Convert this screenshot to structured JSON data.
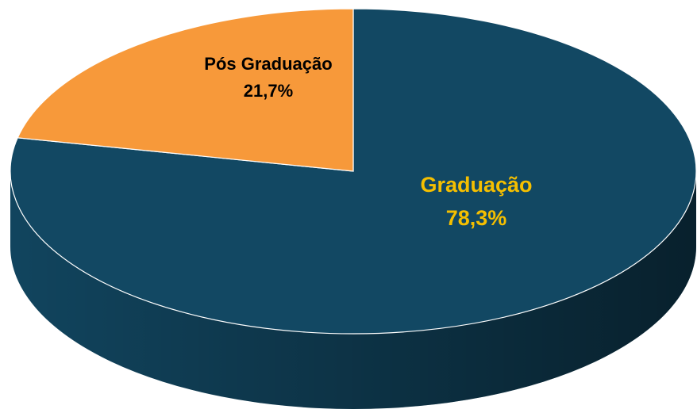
{
  "chart_data": {
    "type": "pie",
    "categories": [
      "Graduação",
      "Pós Graduação"
    ],
    "values": [
      78.3,
      21.7
    ],
    "value_labels": [
      "78,3%",
      "21,7%"
    ],
    "colors": [
      "#124863",
      "#f7993a"
    ],
    "label_colors": [
      "#f5bf00",
      "#000000"
    ]
  }
}
